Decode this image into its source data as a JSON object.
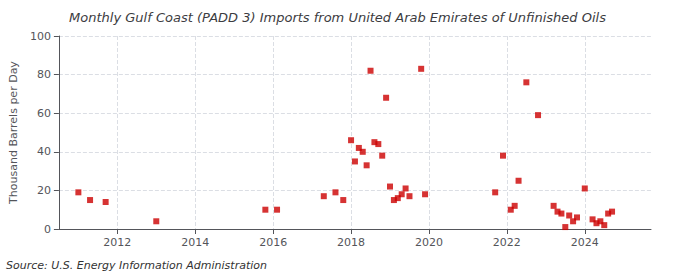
{
  "chart_data": {
    "type": "scatter",
    "title": "Monthly Gulf Coast (PADD 3) Imports from United Arab Emirates of Unfinished Oils",
    "y_label": "Thousand Barrels per Day",
    "annotations": [
      "Source: U.S. Energy Information Administration"
    ],
    "color": "#cc0000",
    "marker": "square",
    "grid": true,
    "xlim": [
      2010.5,
      2025.7
    ],
    "xticks": [
      2012,
      2014,
      2016,
      2018,
      2020,
      2022,
      2024
    ],
    "ylim": [
      0,
      100
    ],
    "yticks": [
      0,
      20,
      40,
      60,
      80,
      100
    ],
    "x": [
      2011.0,
      2011.3,
      2011.7,
      2013.0,
      2015.8,
      2016.1,
      2017.3,
      2017.6,
      2017.8,
      2018.0,
      2018.1,
      2018.2,
      2018.3,
      2018.4,
      2018.5,
      2018.6,
      2018.7,
      2018.8,
      2018.9,
      2019.0,
      2019.1,
      2019.2,
      2019.3,
      2019.4,
      2019.5,
      2019.8,
      2019.9,
      2021.7,
      2021.9,
      2022.1,
      2022.2,
      2022.3,
      2022.5,
      2022.8,
      2023.2,
      2023.3,
      2023.4,
      2023.5,
      2023.6,
      2023.7,
      2023.8,
      2024.0,
      2024.2,
      2024.3,
      2024.4,
      2024.5,
      2024.6,
      2024.7
    ],
    "values": [
      19,
      15,
      14,
      4,
      10,
      10,
      17,
      19,
      15,
      46,
      35,
      42,
      40,
      33,
      82,
      45,
      44,
      38,
      68,
      22,
      15,
      16,
      18,
      21,
      17,
      83,
      18,
      19,
      38,
      10,
      12,
      25,
      76,
      59,
      12,
      9,
      8,
      1,
      7,
      4,
      6,
      21,
      5,
      3,
      4,
      2,
      8,
      9
    ]
  }
}
